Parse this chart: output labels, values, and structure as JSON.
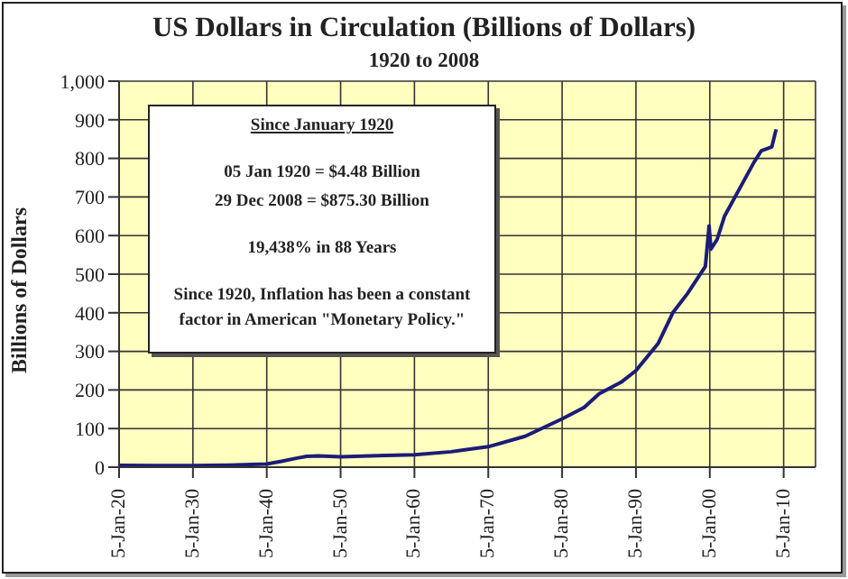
{
  "chart_data": {
    "type": "line",
    "title": "US Dollars in Circulation (Billions of Dollars)",
    "subtitle": "1920 to 2008",
    "ylabel": "Billions of Dollars",
    "annotations": [
      "Since January 1920",
      "05 Jan 1920 = $4.48 Billion",
      "29 Dec 2008 = $875.30 Billion",
      "19,438% in 88 Years",
      "Since 1920, Inflation has been a constant factor in American \"Monetary Policy.\""
    ],
    "x": [
      "1920-01-05",
      "1925-01",
      "1930-01",
      "1935-01",
      "1940-01",
      "1942-01",
      "1944-01",
      "1945-06",
      "1947-01",
      "1950-01",
      "1955-01",
      "1960-01",
      "1965-01",
      "1970-01",
      "1975-01",
      "1980-01",
      "1983-01",
      "1985-01",
      "1988-01",
      "1990-01",
      "1993-01",
      "1995-01",
      "1997-01",
      "1999-06",
      "1999-12",
      "2000-03",
      "2001-01",
      "2002-01",
      "2004-01",
      "2006-01",
      "2007-01",
      "2008-06",
      "2008-12-29"
    ],
    "series": [
      {
        "color": "#1c1c78",
        "values": [
          4.48,
          4,
          4,
          5,
          8,
          15,
          23,
          28,
          29,
          27,
          30,
          32,
          40,
          53,
          80,
          125,
          155,
          190,
          220,
          250,
          320,
          400,
          450,
          520,
          625,
          565,
          590,
          650,
          720,
          790,
          820,
          830,
          875.3
        ]
      }
    ],
    "xlim": [
      "1920-01-05",
      "2014-05-01"
    ],
    "xticks": [
      {
        "value": "1920-01-05",
        "label": "5-Jan-20"
      },
      {
        "value": "1930-01-05",
        "label": "5-Jan-30"
      },
      {
        "value": "1940-01-05",
        "label": "5-Jan-40"
      },
      {
        "value": "1950-01-05",
        "label": "5-Jan-50"
      },
      {
        "value": "1960-01-05",
        "label": "5-Jan-60"
      },
      {
        "value": "1970-01-05",
        "label": "5-Jan-70"
      },
      {
        "value": "1980-01-05",
        "label": "5-Jan-80"
      },
      {
        "value": "1990-01-05",
        "label": "5-Jan-90"
      },
      {
        "value": "2000-01-05",
        "label": "5-Jan-00"
      },
      {
        "value": "2010-01-05",
        "label": "5-Jan-10"
      }
    ],
    "ylim": [
      0,
      1000
    ],
    "yticks": [
      0,
      100,
      200,
      300,
      400,
      500,
      600,
      700,
      800,
      900,
      {
        "value": 1000,
        "label": "1,000"
      }
    ],
    "grid": true,
    "legend": false,
    "marker": "none",
    "line_style": "solid"
  }
}
